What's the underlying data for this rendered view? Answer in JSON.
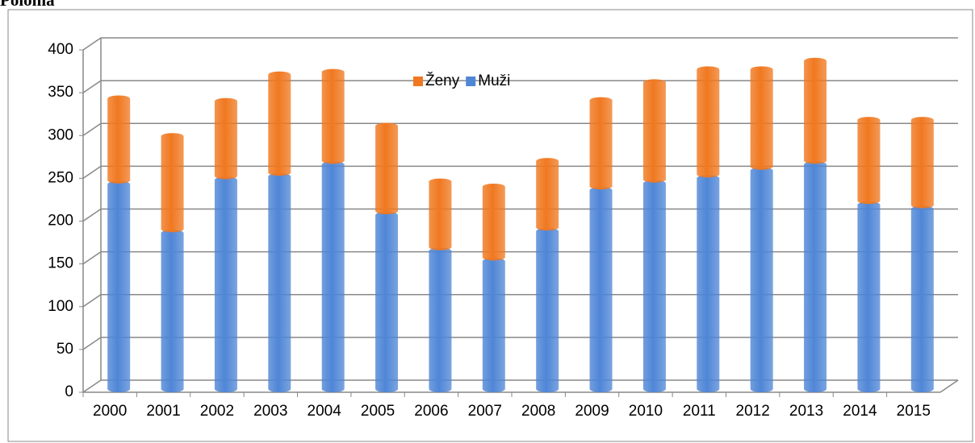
{
  "chart_data": {
    "type": "bar",
    "stacked": true,
    "title": "Polohla",
    "categories": [
      "2000",
      "2001",
      "2002",
      "2003",
      "2004",
      "2005",
      "2006",
      "2007",
      "2008",
      "2009",
      "2010",
      "2011",
      "2012",
      "2013",
      "2014",
      "2015"
    ],
    "series": [
      {
        "name": "Muži",
        "color": "#4f86d6",
        "values": [
          244,
          187,
          249,
          253,
          267,
          208,
          166,
          154,
          189,
          237,
          245,
          251,
          260,
          267,
          220,
          215
        ]
      },
      {
        "name": "Ženy",
        "color": "#f07820",
        "values": [
          100,
          113,
          92,
          119,
          108,
          104,
          81,
          87,
          82,
          105,
          118,
          127,
          118,
          121,
          99,
          104
        ]
      }
    ],
    "ylim": [
      0,
      400
    ],
    "yticks": [
      0,
      50,
      100,
      150,
      200,
      250,
      300,
      350,
      400
    ],
    "grid": true,
    "legend": "top"
  }
}
